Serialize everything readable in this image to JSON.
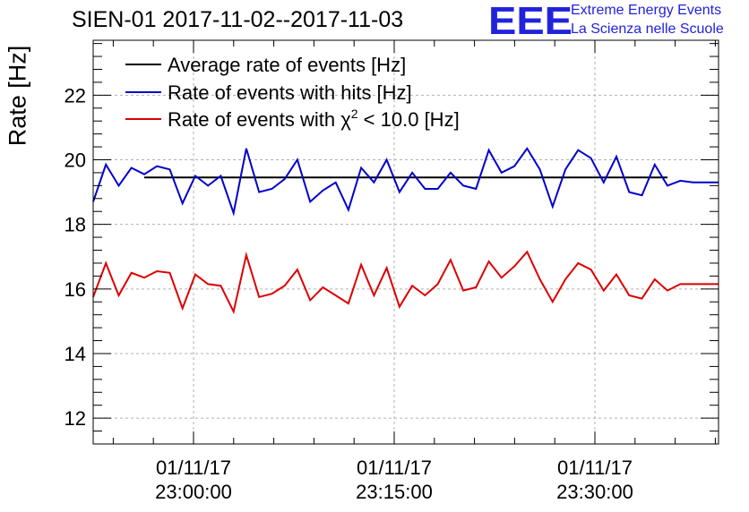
{
  "header": {
    "title": "SIEN-01 2017-11-02--2017-11-03"
  },
  "logo": {
    "mark": "EEE",
    "line1": "Extreme Energy Events",
    "line2": "La Scienza nelle Scuole",
    "color": "#2222dd"
  },
  "chart_data": {
    "type": "line",
    "title": "SIEN-01 2017-11-02--2017-11-03",
    "xlabel": "",
    "ylabel": "Rate [Hz]",
    "ylim": [
      11.2,
      23.7
    ],
    "grid": true,
    "legend_position": "top-left",
    "x_ticks": [
      {
        "line1": "01/11/17",
        "line2": "23:00:00"
      },
      {
        "line1": "01/11/17",
        "line2": "23:15:00"
      },
      {
        "line1": "01/11/17",
        "line2": "23:30:00"
      }
    ],
    "y_ticks": [
      12,
      14,
      16,
      18,
      20,
      22
    ],
    "series": [
      {
        "name": "Average rate of events [Hz]",
        "color": "#000000",
        "x": [
          4,
          45
        ],
        "values": [
          19.45,
          19.45
        ]
      },
      {
        "name": "Rate of events with hits [Hz]",
        "color": "#0000cc",
        "x": [
          0,
          1,
          2,
          3,
          4,
          5,
          6,
          7,
          8,
          9,
          10,
          11,
          12,
          13,
          14,
          15,
          16,
          17,
          18,
          19,
          20,
          21,
          22,
          23,
          24,
          25,
          26,
          27,
          28,
          29,
          30,
          31,
          32,
          33,
          34,
          35,
          36,
          37,
          38,
          39,
          40,
          41,
          42,
          43,
          44,
          45,
          46,
          47,
          48,
          49
        ],
        "values": [
          18.7,
          19.85,
          19.2,
          19.75,
          19.55,
          19.8,
          19.7,
          18.65,
          19.5,
          19.2,
          19.5,
          18.35,
          20.35,
          19.0,
          19.1,
          19.4,
          20.0,
          18.7,
          19.05,
          19.3,
          18.45,
          19.75,
          19.3,
          20.0,
          19.0,
          19.6,
          19.1,
          19.1,
          19.6,
          19.2,
          19.1,
          20.3,
          19.6,
          19.8,
          20.35,
          19.7,
          18.55,
          19.7,
          20.3,
          20.05,
          19.3,
          20.1,
          19.0,
          18.9,
          19.85,
          19.2,
          19.35,
          19.3,
          19.3,
          19.3
        ]
      },
      {
        "name": "Rate of events with χ² < 10.0 [Hz]",
        "color": "#dd0000",
        "x": [
          0,
          1,
          2,
          3,
          4,
          5,
          6,
          7,
          8,
          9,
          10,
          11,
          12,
          13,
          14,
          15,
          16,
          17,
          18,
          19,
          20,
          21,
          22,
          23,
          24,
          25,
          26,
          27,
          28,
          29,
          30,
          31,
          32,
          33,
          34,
          35,
          36,
          37,
          38,
          39,
          40,
          41,
          42,
          43,
          44,
          45,
          46,
          47,
          48,
          49
        ],
        "values": [
          15.75,
          16.8,
          15.8,
          16.5,
          16.35,
          16.55,
          16.5,
          15.4,
          16.45,
          16.15,
          16.1,
          15.3,
          17.05,
          15.75,
          15.85,
          16.1,
          16.6,
          15.65,
          16.05,
          15.8,
          15.55,
          16.75,
          15.8,
          16.65,
          15.45,
          16.1,
          15.8,
          16.15,
          16.9,
          15.95,
          16.05,
          16.85,
          16.35,
          16.7,
          17.15,
          16.3,
          15.6,
          16.3,
          16.8,
          16.6,
          15.95,
          16.45,
          15.8,
          15.7,
          16.3,
          15.95,
          16.15,
          16.15,
          16.15,
          16.15
        ]
      }
    ]
  }
}
